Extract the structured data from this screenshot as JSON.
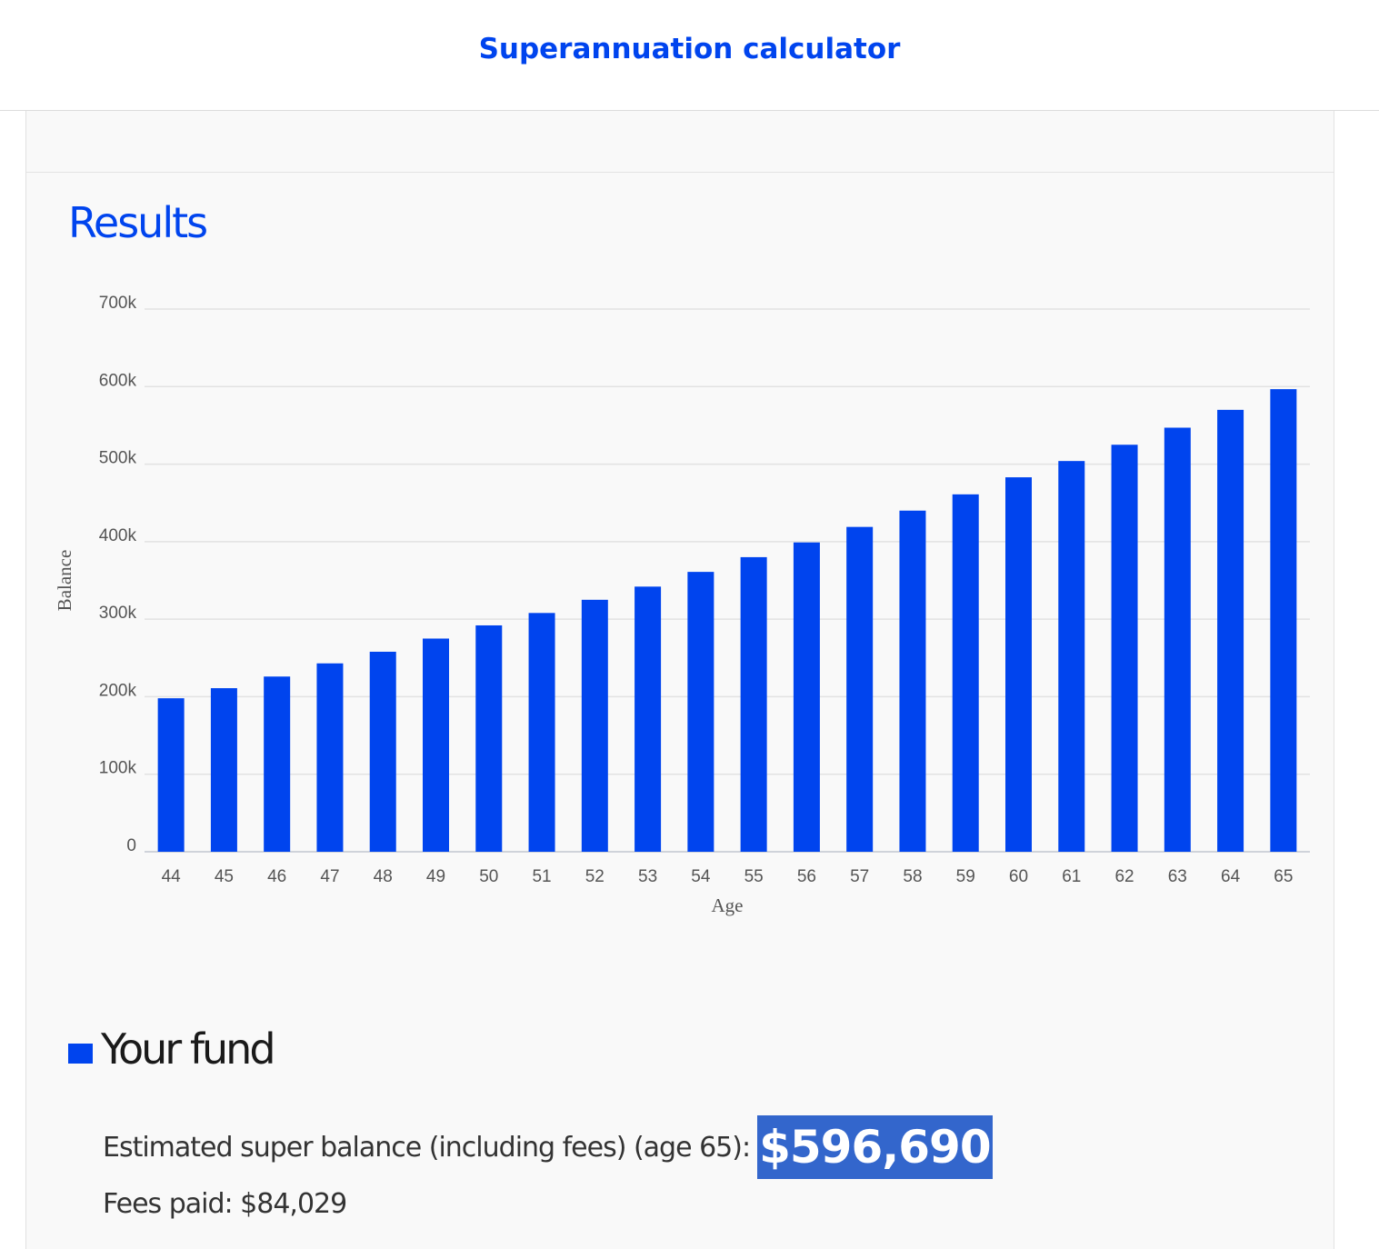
{
  "header": {
    "title": "Superannuation calculator"
  },
  "results": {
    "title": "Results"
  },
  "chart_data": {
    "type": "bar",
    "xlabel": "Age",
    "ylabel": "Balance",
    "ylim": [
      0,
      700000
    ],
    "yticks": [
      0,
      100000,
      200000,
      300000,
      400000,
      500000,
      600000,
      700000
    ],
    "ytick_labels": [
      "0",
      "100k",
      "200k",
      "300k",
      "400k",
      "500k",
      "600k",
      "700k"
    ],
    "grid": true,
    "bar_color": "#0044ee",
    "categories": [
      "44",
      "45",
      "46",
      "47",
      "48",
      "49",
      "50",
      "51",
      "52",
      "53",
      "54",
      "55",
      "56",
      "57",
      "58",
      "59",
      "60",
      "61",
      "62",
      "63",
      "64",
      "65"
    ],
    "values": [
      198000,
      211000,
      226000,
      243000,
      258000,
      275000,
      292000,
      308000,
      325000,
      342000,
      361000,
      380000,
      399000,
      419000,
      440000,
      461000,
      483000,
      504000,
      525000,
      547000,
      570000,
      596690
    ]
  },
  "fund": {
    "title": "Your fund",
    "swatch_color": "#0044ee",
    "estimate_label": "Estimated super balance (including fees) (age 65):",
    "estimate_value": "$596,690",
    "fees_label": "Fees paid: $84,029"
  }
}
